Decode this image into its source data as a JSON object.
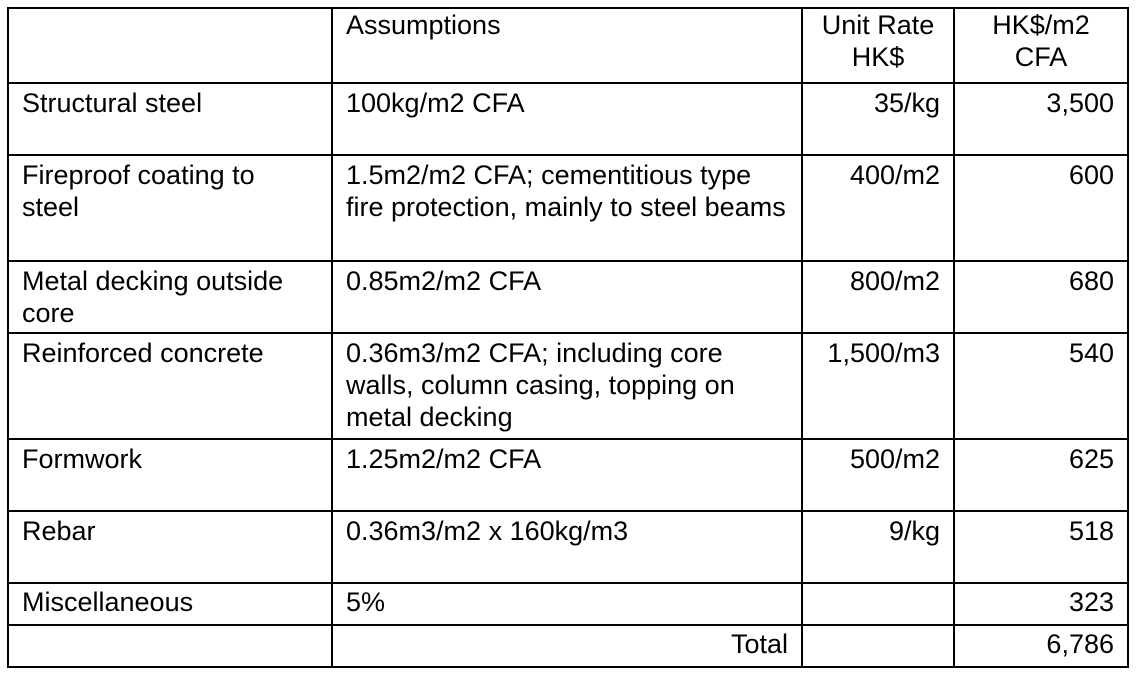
{
  "table": {
    "headers": {
      "item": "",
      "assumptions": "Assumptions",
      "unit_rate_line1": "Unit Rate",
      "unit_rate_line2": "HK$",
      "cost_line1": "HK$/m2",
      "cost_line2": "CFA"
    },
    "rows": [
      {
        "item": "Structural steel",
        "assumptions": "100kg/m2 CFA",
        "unit_rate": "35/kg",
        "cost": "3,500"
      },
      {
        "item": "Fireproof coating to steel",
        "assumptions": "1.5m2/m2 CFA; cementitious type fire protection, mainly to steel beams",
        "unit_rate": "400/m2",
        "cost": "600"
      },
      {
        "item": "Metal decking outside core",
        "assumptions": "0.85m2/m2 CFA",
        "unit_rate": "800/m2",
        "cost": "680"
      },
      {
        "item": "Reinforced concrete",
        "assumptions": "0.36m3/m2 CFA; including core walls, column casing, topping on metal decking",
        "unit_rate": "1,500/m3",
        "cost": "540"
      },
      {
        "item": "Formwork",
        "assumptions": "1.25m2/m2 CFA",
        "unit_rate": "500/m2",
        "cost": "625"
      },
      {
        "item": "Rebar",
        "assumptions": "0.36m3/m2 x 160kg/m3",
        "unit_rate": "9/kg",
        "cost": "518"
      },
      {
        "item": "Miscellaneous",
        "assumptions": "5%",
        "unit_rate": "",
        "cost": "323"
      }
    ],
    "total": {
      "label": "Total",
      "value": "6,786"
    }
  }
}
